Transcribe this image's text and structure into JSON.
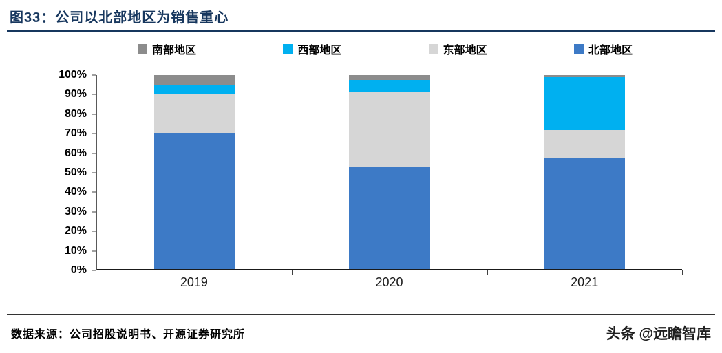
{
  "header": {
    "title": "图33：公司以北部地区为销售重心"
  },
  "chart_data": {
    "type": "bar",
    "subtype": "stacked-100-percent",
    "title": "公司以北部地区为销售重心",
    "categories": [
      "2019",
      "2020",
      "2021"
    ],
    "series": [
      {
        "name": "北部地区",
        "color": "#3D7AC6",
        "values": [
          70,
          52.5,
          57
        ]
      },
      {
        "name": "东部地区",
        "color": "#D6D6D6",
        "values": [
          20,
          38.5,
          14.5
        ]
      },
      {
        "name": "西部地区",
        "color": "#00B0F0",
        "values": [
          5,
          6.5,
          27.5
        ]
      },
      {
        "name": "南部地区",
        "color": "#8C8C8C",
        "values": [
          5,
          2.5,
          1
        ]
      }
    ],
    "legend_order": [
      "南部地区",
      "西部地区",
      "东部地区",
      "北部地区"
    ],
    "legend_position": "top",
    "y_ticks": [
      "100%",
      "90%",
      "80%",
      "70%",
      "60%",
      "50%",
      "40%",
      "30%",
      "20%",
      "10%",
      "0%"
    ],
    "ylim": [
      0,
      100
    ],
    "grid": false,
    "xlabel": "",
    "ylabel": ""
  },
  "footer": {
    "source": "数据来源：公司招股说明书、开源证券研究所",
    "watermark": "头条 @远瞻智库"
  },
  "colors": {
    "title_blue": "#17375E",
    "north_blue": "#3D7AC6",
    "west_cyan": "#00B0F0",
    "east_light_gray": "#D6D6D6",
    "south_gray": "#8C8C8C"
  }
}
